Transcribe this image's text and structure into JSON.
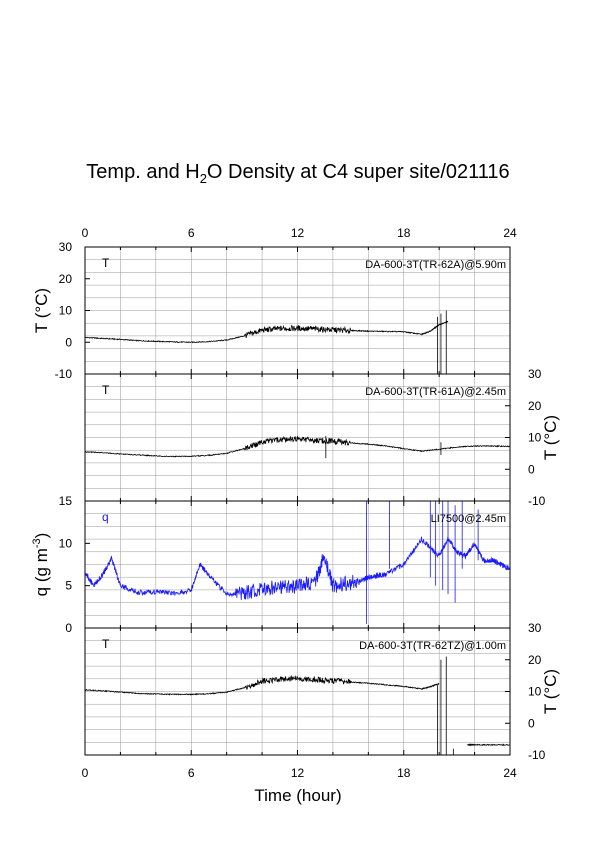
{
  "figure": {
    "title_before": "Temp. and H",
    "title_sub": "2",
    "title_after": "O Density at C4 super site/021116",
    "xlabel": "Time (hour)",
    "top_ticks": [
      "0",
      "6",
      "12",
      "18",
      "24"
    ],
    "bottom_ticks": [
      "0",
      "6",
      "12",
      "18",
      "24"
    ]
  },
  "panels": [
    {
      "id": "p1",
      "var": "T",
      "var_color": "#000000",
      "note": "DA-600-3T(TR-62A)@5.90m",
      "ylabel_side": "left",
      "ylabel": "T (°C)",
      "yticks": [
        "30",
        "20",
        "10",
        "0",
        "-10"
      ]
    },
    {
      "id": "p2",
      "var": "T",
      "var_color": "#000000",
      "note": "DA-600-3T(TR-61A)@2.45m",
      "ylabel_side": "right",
      "ylabel": "T (°C)",
      "yticks": [
        "30",
        "20",
        "10",
        "0",
        "-10"
      ]
    },
    {
      "id": "p3",
      "var": "q",
      "var_color": "#1a1aff",
      "note": "LI7500@2.45m",
      "ylabel_side": "left",
      "ylabel_main": "q (g m",
      "ylabel_sup": "-3",
      "ylabel_close": ")",
      "yticks": [
        "15",
        "10",
        "5",
        "0"
      ]
    },
    {
      "id": "p4",
      "var": "T",
      "var_color": "#000000",
      "note": "DA-600-3T(TR-62TZ)@1.00m",
      "ylabel_side": "right",
      "ylabel": "T (°C)",
      "yticks": [
        "30",
        "20",
        "10",
        "0",
        "-10"
      ]
    }
  ],
  "chart_data": [
    {
      "type": "line",
      "title": "",
      "xlabel": "",
      "ylabel": "T (°C)",
      "xlim": [
        0,
        24
      ],
      "ylim": [
        -10,
        30
      ],
      "series": [
        {
          "color": "#000000",
          "x": [
            0,
            1,
            2,
            3,
            4,
            5,
            6,
            7,
            8,
            9,
            10,
            11,
            12,
            13,
            14,
            15,
            16,
            17,
            18,
            19,
            19.5,
            20,
            20.5
          ],
          "y": [
            1.5,
            1.2,
            0.9,
            0.5,
            0.3,
            0.1,
            0.0,
            0.2,
            0.7,
            2.0,
            3.8,
            4.3,
            4.4,
            4.2,
            3.9,
            3.7,
            3.5,
            3.4,
            3.3,
            2.5,
            3.5,
            5.5,
            6.5
          ]
        }
      ],
      "spikes": [
        {
          "x": 19.9,
          "y_min": -10,
          "y_max": 8
        },
        {
          "x": 20.1,
          "y_min": -10,
          "y_max": 9
        },
        {
          "x": 20.4,
          "y_min": -10,
          "y_max": 10
        }
      ]
    },
    {
      "type": "line",
      "title": "",
      "xlabel": "",
      "ylabel": "T (°C)",
      "xlim": [
        0,
        24
      ],
      "ylim": [
        -10,
        30
      ],
      "series": [
        {
          "color": "#000000",
          "x": [
            0,
            1,
            2,
            3,
            4,
            5,
            6,
            7,
            8,
            9,
            10,
            11,
            12,
            13,
            14,
            15,
            16,
            17,
            18,
            19,
            20,
            21,
            22,
            23,
            24
          ],
          "y": [
            5.5,
            5.2,
            4.8,
            4.5,
            4.2,
            4.0,
            4.1,
            4.4,
            5.0,
            6.5,
            8.5,
            9.3,
            9.5,
            9.2,
            8.8,
            8.3,
            7.9,
            7.3,
            6.5,
            5.7,
            6.3,
            7.0,
            7.3,
            7.3,
            7.2
          ]
        }
      ],
      "spikes": [
        {
          "x": 13.6,
          "y_min": 3.5,
          "y_max": 10.5
        },
        {
          "x": 20.1,
          "y_min": 4.5,
          "y_max": 8.5
        }
      ]
    },
    {
      "type": "line",
      "title": "",
      "xlabel": "",
      "ylabel": "q (g m-3)",
      "xlim": [
        0,
        24
      ],
      "ylim": [
        0,
        15
      ],
      "series": [
        {
          "color": "#1a1aff",
          "x": [
            0,
            0.5,
            1,
            1.5,
            2,
            3,
            4,
            5,
            6,
            6.5,
            7,
            8,
            9,
            10,
            11,
            12,
            13,
            13.5,
            14,
            15,
            15.8,
            16,
            16.5,
            17,
            18,
            19,
            20,
            20.5,
            21,
            21.5,
            22,
            22.5,
            23,
            23.5,
            24
          ],
          "y": [
            6.5,
            5.0,
            6.3,
            8.2,
            5.0,
            4.2,
            4.3,
            4.1,
            4.5,
            7.5,
            6.2,
            4.0,
            4.2,
            4.6,
            4.8,
            4.9,
            5.5,
            8.5,
            5.0,
            5.3,
            5.8,
            6.0,
            6.2,
            6.3,
            7.5,
            10.5,
            8.5,
            10.5,
            9.0,
            8.5,
            10.0,
            8.0,
            8.0,
            7.5,
            7.0
          ]
        }
      ],
      "spikes": [
        {
          "x": 15.9,
          "y_min": 0.5,
          "y_max": 15
        },
        {
          "x": 17.2,
          "y_min": 7,
          "y_max": 15
        },
        {
          "x": 19.5,
          "y_min": 6,
          "y_max": 15
        },
        {
          "x": 19.8,
          "y_min": 5,
          "y_max": 15
        },
        {
          "x": 20.2,
          "y_min": 4.5,
          "y_max": 15
        },
        {
          "x": 20.5,
          "y_min": 4,
          "y_max": 15
        },
        {
          "x": 20.9,
          "y_min": 3,
          "y_max": 14.5
        },
        {
          "x": 21.3,
          "y_min": 7,
          "y_max": 15
        },
        {
          "x": 22.2,
          "y_min": 8,
          "y_max": 14
        }
      ]
    },
    {
      "type": "line",
      "title": "",
      "xlabel": "",
      "ylabel": "T (°C)",
      "xlim": [
        0,
        24
      ],
      "ylim": [
        -10,
        30
      ],
      "series": [
        {
          "color": "#000000",
          "x": [
            0,
            1,
            2,
            3,
            4,
            5,
            6,
            7,
            8,
            9,
            10,
            11,
            12,
            13,
            14,
            15,
            16,
            17,
            18,
            19,
            19.5,
            20
          ],
          "y": [
            10.5,
            10.2,
            9.8,
            9.4,
            9.2,
            9.1,
            9.1,
            9.3,
            9.8,
            11.2,
            13.2,
            14.0,
            14.1,
            13.8,
            13.4,
            13.0,
            12.6,
            12.1,
            11.6,
            10.8,
            11.5,
            12.5
          ]
        },
        {
          "color": "#000000",
          "x": [
            21.6,
            22,
            23,
            24
          ],
          "y": [
            -6.8,
            -6.8,
            -6.8,
            -6.8
          ]
        }
      ],
      "spikes": [
        {
          "x": 19.9,
          "y_min": -10,
          "y_max": 12
        },
        {
          "x": 20.1,
          "y_min": -10,
          "y_max": 20
        },
        {
          "x": 20.4,
          "y_min": -10,
          "y_max": 21
        },
        {
          "x": 20.8,
          "y_min": -10,
          "y_max": -8
        }
      ]
    }
  ]
}
